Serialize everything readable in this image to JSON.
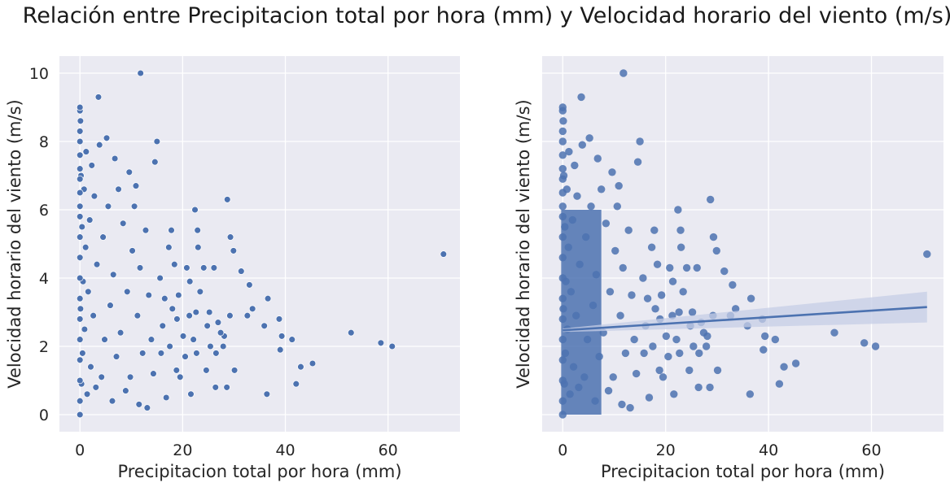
{
  "figure": {
    "suptitle": "Relación entre Precipitacion total por hora (mm) y Velocidad horario del viento (m/s)"
  },
  "colors": {
    "background": "#eaeaf2",
    "grid": "#ffffff",
    "points": "#4c72b0",
    "regression_band": "#c5cde6"
  },
  "chart_data": [
    {
      "type": "scatter",
      "title": "",
      "xlabel": "Precipitacion total por hora (mm)",
      "ylabel": "Velocidad horario del viento (m/s)",
      "xlim": [
        -4,
        74
      ],
      "ylim": [
        -0.5,
        10.5
      ],
      "xticks": [
        0,
        20,
        40,
        60
      ],
      "yticks": [
        0,
        2,
        4,
        6,
        8,
        10
      ],
      "grid": true,
      "series": [
        {
          "values": [
            [
              11.8,
              10.0
            ],
            [
              70.8,
              4.7
            ],
            [
              60.8,
              2.0
            ],
            [
              58.6,
              2.1
            ],
            [
              52.8,
              2.4
            ],
            [
              45.3,
              1.5
            ],
            [
              43.0,
              1.4
            ],
            [
              42.1,
              0.9
            ],
            [
              41.3,
              2.2
            ],
            [
              39.3,
              2.3
            ],
            [
              39.0,
              1.9
            ],
            [
              38.8,
              2.8
            ],
            [
              36.6,
              3.4
            ],
            [
              36.4,
              0.6
            ],
            [
              35.9,
              2.6
            ],
            [
              33.6,
              3.1
            ],
            [
              33.0,
              3.8
            ],
            [
              32.6,
              2.9
            ],
            [
              31.4,
              4.2
            ],
            [
              30.1,
              1.3
            ],
            [
              29.9,
              4.8
            ],
            [
              29.3,
              5.2
            ],
            [
              29.2,
              2.9
            ],
            [
              28.7,
              6.3
            ],
            [
              28.6,
              0.8
            ],
            [
              28.1,
              2.3
            ],
            [
              27.9,
              2.0
            ],
            [
              27.4,
              2.4
            ],
            [
              26.9,
              2.7
            ],
            [
              26.5,
              1.8
            ],
            [
              26.4,
              0.8
            ],
            [
              26.1,
              4.3
            ],
            [
              25.4,
              2.0
            ],
            [
              25.2,
              3.0
            ],
            [
              24.8,
              2.6
            ],
            [
              24.6,
              1.3
            ],
            [
              24.1,
              4.3
            ],
            [
              23.4,
              3.6
            ],
            [
              23.0,
              4.9
            ],
            [
              22.9,
              5.4
            ],
            [
              22.7,
              1.8
            ],
            [
              22.6,
              3.0
            ],
            [
              22.4,
              6.0
            ],
            [
              22.1,
              2.2
            ],
            [
              21.6,
              0.6
            ],
            [
              21.4,
              3.9
            ],
            [
              21.3,
              2.9
            ],
            [
              20.8,
              4.3
            ],
            [
              20.5,
              1.7
            ],
            [
              20.1,
              2.3
            ],
            [
              19.5,
              1.1
            ],
            [
              19.2,
              3.5
            ],
            [
              18.9,
              2.8
            ],
            [
              18.8,
              1.3
            ],
            [
              18.4,
              4.4
            ],
            [
              18.0,
              3.1
            ],
            [
              17.8,
              5.4
            ],
            [
              17.5,
              2.0
            ],
            [
              17.3,
              4.9
            ],
            [
              16.8,
              0.5
            ],
            [
              16.5,
              3.4
            ],
            [
              16.1,
              2.6
            ],
            [
              15.8,
              1.8
            ],
            [
              15.6,
              4.0
            ],
            [
              15.0,
              8.0
            ],
            [
              14.6,
              7.4
            ],
            [
              14.3,
              1.2
            ],
            [
              13.9,
              2.2
            ],
            [
              13.4,
              3.5
            ],
            [
              13.1,
              0.2
            ],
            [
              12.8,
              5.4
            ],
            [
              12.2,
              1.8
            ],
            [
              11.7,
              4.3
            ],
            [
              11.5,
              0.3
            ],
            [
              11.2,
              2.9
            ],
            [
              10.9,
              6.7
            ],
            [
              10.6,
              6.1
            ],
            [
              10.2,
              4.8
            ],
            [
              9.8,
              1.1
            ],
            [
              9.6,
              7.1
            ],
            [
              9.2,
              3.6
            ],
            [
              8.9,
              0.7
            ],
            [
              8.4,
              5.6
            ],
            [
              7.9,
              2.4
            ],
            [
              7.5,
              6.6
            ],
            [
              7.1,
              1.7
            ],
            [
              6.8,
              7.5
            ],
            [
              6.5,
              4.1
            ],
            [
              6.3,
              0.4
            ],
            [
              5.9,
              3.2
            ],
            [
              5.5,
              6.1
            ],
            [
              5.2,
              8.1
            ],
            [
              4.8,
              2.2
            ],
            [
              4.5,
              5.2
            ],
            [
              4.2,
              1.1
            ],
            [
              3.8,
              7.9
            ],
            [
              3.6,
              9.3
            ],
            [
              3.3,
              4.4
            ],
            [
              3.1,
              0.8
            ],
            [
              2.8,
              6.4
            ],
            [
              2.6,
              2.9
            ],
            [
              2.3,
              7.3
            ],
            [
              2.1,
              1.4
            ],
            [
              1.9,
              5.7
            ],
            [
              1.6,
              3.6
            ],
            [
              1.4,
              0.6
            ],
            [
              1.2,
              7.7
            ],
            [
              1.1,
              4.9
            ],
            [
              0.9,
              2.5
            ],
            [
              0.8,
              6.6
            ],
            [
              0.6,
              3.9
            ],
            [
              0.5,
              1.8
            ],
            [
              0.4,
              5.5
            ],
            [
              0.3,
              0.9
            ],
            [
              0.2,
              7.0
            ],
            [
              0.1,
              8.6
            ],
            [
              0.1,
              3.1
            ],
            [
              0.0,
              8.9
            ],
            [
              0.0,
              9.0
            ],
            [
              0.0,
              8.3
            ],
            [
              0.0,
              8.0
            ],
            [
              0.0,
              7.6
            ],
            [
              0.0,
              7.2
            ],
            [
              0.0,
              6.9
            ],
            [
              0.0,
              6.5
            ],
            [
              0.0,
              6.1
            ],
            [
              0.0,
              5.8
            ],
            [
              0.0,
              5.2
            ],
            [
              0.0,
              4.6
            ],
            [
              0.0,
              4.0
            ],
            [
              0.0,
              3.4
            ],
            [
              0.0,
              2.8
            ],
            [
              0.0,
              2.2
            ],
            [
              0.0,
              1.6
            ],
            [
              0.0,
              1.0
            ],
            [
              0.0,
              0.4
            ],
            [
              0.0,
              0.0
            ]
          ]
        }
      ]
    },
    {
      "type": "scatter",
      "title": "",
      "xlabel": "Precipitacion total por hora (mm)",
      "ylabel": "Velocidad horario del viento (m/s)",
      "xlim": [
        -4,
        74
      ],
      "ylim": [
        -0.5,
        10.5
      ],
      "xticks": [
        0,
        20,
        40,
        60
      ],
      "yticks": [
        0,
        2,
        4,
        6,
        8,
        10
      ],
      "grid": true,
      "regression": {
        "x": [
          0,
          70.8
        ],
        "y": [
          2.47,
          3.15
        ],
        "band_at_x_max": [
          2.7,
          3.6
        ]
      },
      "series": [
        {
          "values": [
            [
              11.8,
              10.0
            ],
            [
              70.8,
              4.7
            ],
            [
              60.8,
              2.0
            ],
            [
              58.6,
              2.1
            ],
            [
              52.8,
              2.4
            ],
            [
              45.3,
              1.5
            ],
            [
              43.0,
              1.4
            ],
            [
              42.1,
              0.9
            ],
            [
              41.3,
              2.2
            ],
            [
              39.3,
              2.3
            ],
            [
              39.0,
              1.9
            ],
            [
              38.8,
              2.8
            ],
            [
              36.6,
              3.4
            ],
            [
              36.4,
              0.6
            ],
            [
              35.9,
              2.6
            ],
            [
              33.6,
              3.1
            ],
            [
              33.0,
              3.8
            ],
            [
              32.6,
              2.9
            ],
            [
              31.4,
              4.2
            ],
            [
              30.1,
              1.3
            ],
            [
              29.9,
              4.8
            ],
            [
              29.3,
              5.2
            ],
            [
              29.2,
              2.9
            ],
            [
              28.7,
              6.3
            ],
            [
              28.6,
              0.8
            ],
            [
              28.1,
              2.3
            ],
            [
              27.9,
              2.0
            ],
            [
              27.4,
              2.4
            ],
            [
              26.9,
              2.7
            ],
            [
              26.5,
              1.8
            ],
            [
              26.4,
              0.8
            ],
            [
              26.1,
              4.3
            ],
            [
              25.4,
              2.0
            ],
            [
              25.2,
              3.0
            ],
            [
              24.8,
              2.6
            ],
            [
              24.6,
              1.3
            ],
            [
              24.1,
              4.3
            ],
            [
              23.4,
              3.6
            ],
            [
              23.0,
              4.9
            ],
            [
              22.9,
              5.4
            ],
            [
              22.7,
              1.8
            ],
            [
              22.6,
              3.0
            ],
            [
              22.4,
              6.0
            ],
            [
              22.1,
              2.2
            ],
            [
              21.6,
              0.6
            ],
            [
              21.4,
              3.9
            ],
            [
              21.3,
              2.9
            ],
            [
              20.8,
              4.3
            ],
            [
              20.5,
              1.7
            ],
            [
              20.1,
              2.3
            ],
            [
              19.5,
              1.1
            ],
            [
              19.2,
              3.5
            ],
            [
              18.9,
              2.8
            ],
            [
              18.8,
              1.3
            ],
            [
              18.4,
              4.4
            ],
            [
              18.0,
              3.1
            ],
            [
              17.8,
              5.4
            ],
            [
              17.5,
              2.0
            ],
            [
              17.3,
              4.9
            ],
            [
              16.8,
              0.5
            ],
            [
              16.5,
              3.4
            ],
            [
              16.1,
              2.6
            ],
            [
              15.8,
              1.8
            ],
            [
              15.6,
              4.0
            ],
            [
              15.0,
              8.0
            ],
            [
              14.6,
              7.4
            ],
            [
              14.3,
              1.2
            ],
            [
              13.9,
              2.2
            ],
            [
              13.4,
              3.5
            ],
            [
              13.1,
              0.2
            ],
            [
              12.8,
              5.4
            ],
            [
              12.2,
              1.8
            ],
            [
              11.7,
              4.3
            ],
            [
              11.5,
              0.3
            ],
            [
              11.2,
              2.9
            ],
            [
              10.9,
              6.7
            ],
            [
              10.6,
              6.1
            ],
            [
              10.2,
              4.8
            ],
            [
              9.8,
              1.1
            ],
            [
              9.6,
              7.1
            ],
            [
              9.2,
              3.6
            ],
            [
              8.9,
              0.7
            ],
            [
              8.4,
              5.6
            ],
            [
              7.9,
              2.4
            ],
            [
              7.5,
              6.6
            ],
            [
              7.1,
              1.7
            ],
            [
              6.8,
              7.5
            ],
            [
              6.5,
              4.1
            ],
            [
              6.3,
              0.4
            ],
            [
              5.9,
              3.2
            ],
            [
              5.5,
              6.1
            ],
            [
              5.2,
              8.1
            ],
            [
              4.8,
              2.2
            ],
            [
              4.5,
              5.2
            ],
            [
              4.2,
              1.1
            ],
            [
              3.8,
              7.9
            ],
            [
              3.6,
              9.3
            ],
            [
              3.3,
              4.4
            ],
            [
              3.1,
              0.8
            ],
            [
              2.8,
              6.4
            ],
            [
              2.6,
              2.9
            ],
            [
              2.3,
              7.3
            ],
            [
              2.1,
              1.4
            ],
            [
              1.9,
              5.7
            ],
            [
              1.6,
              3.6
            ],
            [
              1.4,
              0.6
            ],
            [
              1.2,
              7.7
            ],
            [
              1.1,
              4.9
            ],
            [
              0.9,
              2.5
            ],
            [
              0.8,
              6.6
            ],
            [
              0.6,
              3.9
            ],
            [
              0.5,
              1.8
            ],
            [
              0.4,
              5.5
            ],
            [
              0.3,
              0.9
            ],
            [
              0.2,
              7.0
            ],
            [
              0.1,
              8.6
            ],
            [
              0.1,
              3.1
            ],
            [
              0.0,
              8.9
            ],
            [
              0.0,
              9.0
            ],
            [
              0.0,
              8.3
            ],
            [
              0.0,
              8.0
            ],
            [
              0.0,
              7.6
            ],
            [
              0.0,
              7.2
            ],
            [
              0.0,
              6.9
            ],
            [
              0.0,
              6.5
            ],
            [
              0.0,
              6.1
            ],
            [
              0.0,
              5.8
            ],
            [
              0.0,
              5.2
            ],
            [
              0.0,
              4.6
            ],
            [
              0.0,
              4.0
            ],
            [
              0.0,
              3.4
            ],
            [
              0.0,
              2.8
            ],
            [
              0.0,
              2.2
            ],
            [
              0.0,
              1.6
            ],
            [
              0.0,
              1.0
            ],
            [
              0.0,
              0.4
            ],
            [
              0.0,
              0.0
            ]
          ]
        }
      ]
    }
  ]
}
